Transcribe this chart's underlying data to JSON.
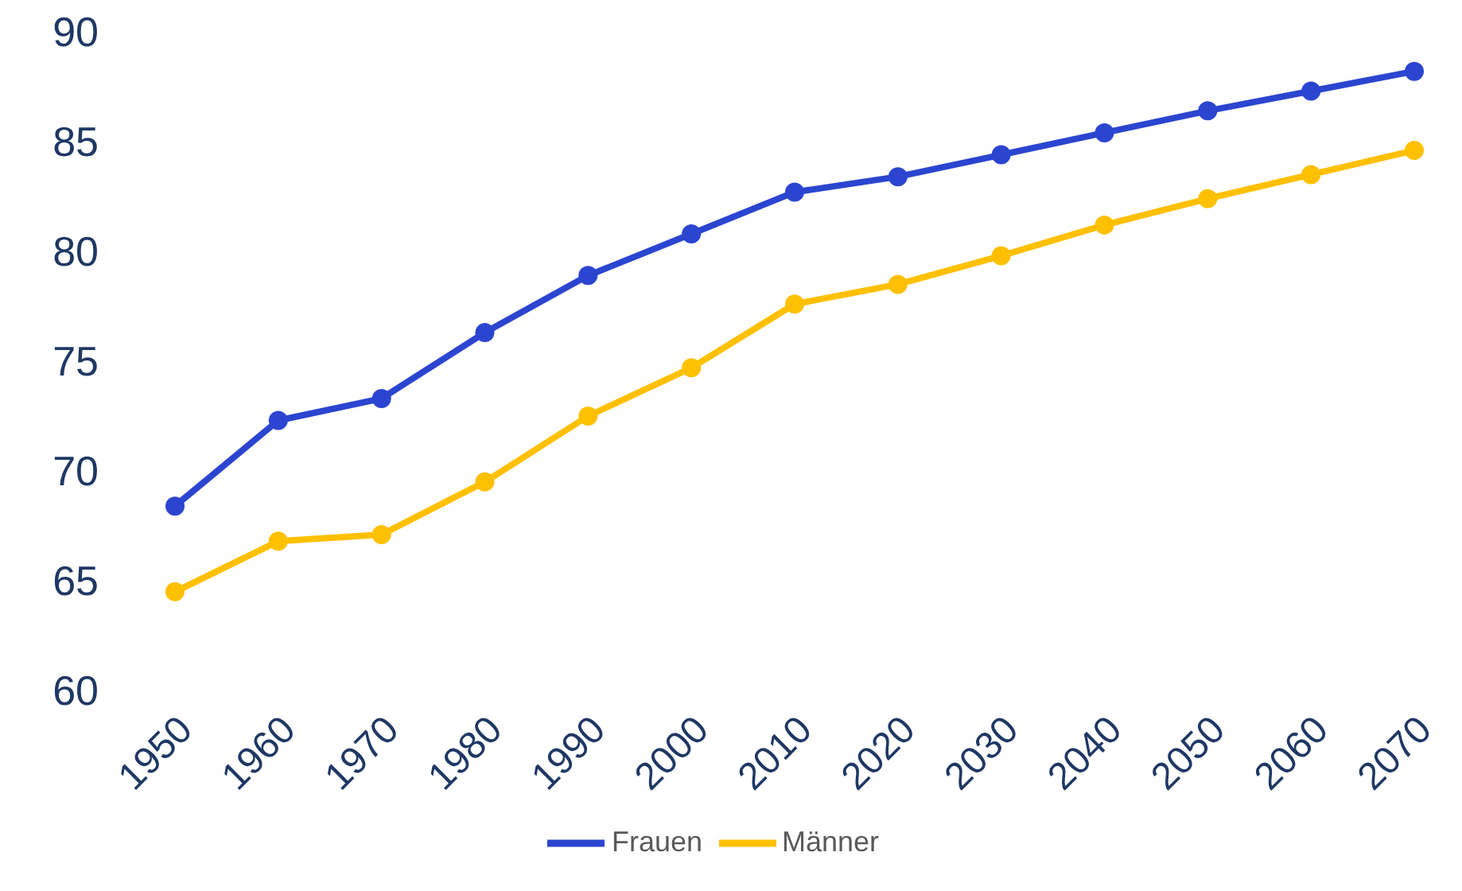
{
  "chart_data": {
    "type": "line",
    "categories": [
      "1950",
      "1960",
      "1970",
      "1980",
      "1990",
      "2000",
      "2010",
      "2020",
      "2030",
      "2040",
      "2050",
      "2060",
      "2070"
    ],
    "series": [
      {
        "name": "Männer",
        "color": "#ffc000",
        "values": [
          64.5,
          66.8,
          67.1,
          69.5,
          72.5,
          74.7,
          77.6,
          78.5,
          79.8,
          81.2,
          82.4,
          83.5,
          84.6
        ]
      },
      {
        "name": "Frauen",
        "color": "#2b45d0",
        "values": [
          68.4,
          72.3,
          73.3,
          76.3,
          78.9,
          80.8,
          82.7,
          83.4,
          84.4,
          85.4,
          86.4,
          87.3,
          88.2
        ]
      }
    ],
    "ylim": [
      60,
      90
    ],
    "yticks": [
      60,
      65,
      70,
      75,
      80,
      85,
      90
    ],
    "grid": false,
    "legend": "bottom",
    "marker": "circle",
    "line_style": "solid"
  }
}
